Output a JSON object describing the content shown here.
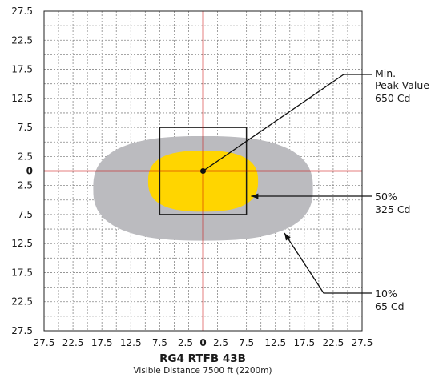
{
  "chart_data": {
    "type": "isocandela",
    "title": "RG4 RTFB 43B",
    "subtitle": "Visible Distance 7500 ft (2200m)",
    "xlim": [
      -27.5,
      27.5
    ],
    "ylim": [
      -27.5,
      27.5
    ],
    "grid": true,
    "grid_step": 2.5,
    "x_tick_labels": [
      "27.5",
      "22.5",
      "17.5",
      "12.5",
      "7.5",
      "2.5",
      "0",
      "2.5",
      "7.5",
      "12.5",
      "17.5",
      "22.5",
      "27.5"
    ],
    "y_tick_labels": [
      "27.5",
      "22.5",
      "17.5",
      "12.5",
      "7.5",
      "2.5",
      "0",
      "2.5",
      "7.5",
      "12.5",
      "17.5",
      "22.5",
      "27.5"
    ],
    "regions": [
      {
        "name": "10%",
        "value": "65 Cd",
        "color": "#bbbbbf",
        "x_extent": [
          -19,
          19
        ],
        "y_extent": [
          -12,
          6
        ]
      },
      {
        "name": "50%",
        "value": "325 Cd",
        "color": "#ffd500",
        "x_extent": [
          -9.5,
          9.5
        ],
        "y_extent": [
          -7,
          3.5
        ]
      }
    ],
    "rectangle": {
      "x": [
        -7.5,
        7.5
      ],
      "y": [
        -7.5,
        7.5
      ]
    },
    "peak_point": {
      "x": 0,
      "y": 0
    },
    "annotations": [
      {
        "lines": [
          "Min.",
          "Peak Value",
          "650 Cd"
        ]
      },
      {
        "lines": [
          "50%",
          "325 Cd"
        ]
      },
      {
        "lines": [
          "10%",
          "65 Cd"
        ]
      }
    ],
    "colors": {
      "axis": "#cc0000",
      "grid": "#888888",
      "frame": "#222222"
    }
  }
}
